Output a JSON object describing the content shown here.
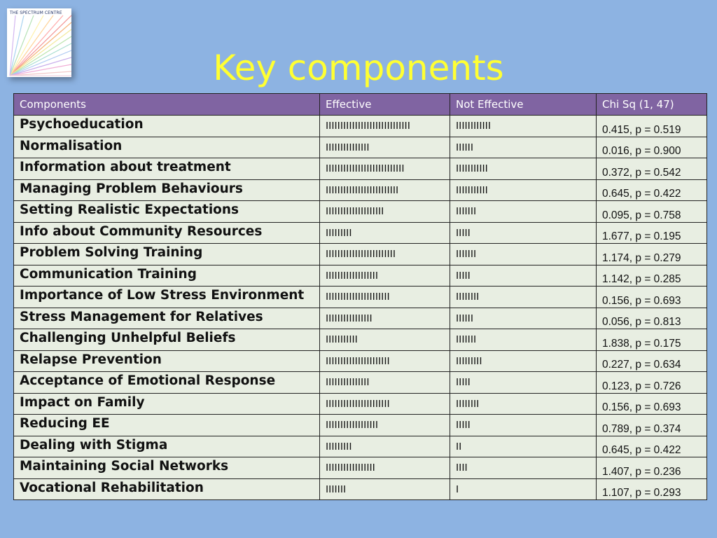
{
  "logo": {
    "text": "THE SPECTRUM CENTRE"
  },
  "slide": {
    "title": "Key components"
  },
  "table": {
    "headers": [
      "Components",
      "Effective",
      "Not Effective",
      "Chi Sq (1, 47)"
    ],
    "rows": [
      {
        "component": "Psychoeducation",
        "effective": "IIIIIIIIIIIIIIIIIIIIIIIIIIIII",
        "not_effective": "IIIIIIIIIIII",
        "chi": "0.415, p = 0.519"
      },
      {
        "component": "Normalisation",
        "effective": "IIIIIIIIIIIIIII",
        "not_effective": "IIIIII",
        "chi": "0.016, p = 0.900"
      },
      {
        "component": "Information about treatment",
        "effective": "IIIIIIIIIIIIIIIIIIIIIIIIIII",
        "not_effective": "IIIIIIIIIII",
        "chi": "0.372, p = 0.542"
      },
      {
        "component": "Managing Problem Behaviours",
        "effective": "IIIIIIIIIIIIIIIIIIIIIIIII",
        "not_effective": "IIIIIIIIIII",
        "chi": "0.645, p = 0.422"
      },
      {
        "component": "Setting Realistic Expectations",
        "effective": "IIIIIIIIIIIIIIIIIIII",
        "not_effective": "IIIIIII",
        "chi": "0.095, p = 0.758"
      },
      {
        "component": "Info about Community Resources",
        "effective": "IIIIIIIII",
        "not_effective": "IIIII",
        "chi": "1.677, p = 0.195"
      },
      {
        "component": "Problem Solving Training",
        "effective": "IIIIIIIIIIIIIIIIIIIIIIII",
        "not_effective": "IIIIIII",
        "chi": "1.174, p = 0.279"
      },
      {
        "component": "Communication Training",
        "effective": "IIIIIIIIIIIIIIIIII",
        "not_effective": "IIIII",
        "chi": "1.142, p = 0.285"
      },
      {
        "component": "Importance of Low Stress Environment",
        "effective": "IIIIIIIIIIIIIIIIIIIIII",
        "not_effective": "IIIIIIII",
        "chi": "0.156, p = 0.693"
      },
      {
        "component": "Stress Management for Relatives",
        "effective": "IIIIIIIIIIIIIIII",
        "not_effective": "IIIIII",
        "chi": "0.056, p = 0.813"
      },
      {
        "component": "Challenging Unhelpful Beliefs",
        "effective": "IIIIIIIIIII",
        "not_effective": "IIIIIII",
        "chi": "1.838, p = 0.175"
      },
      {
        "component": "Relapse Prevention",
        "effective": "IIIIIIIIIIIIIIIIIIIIII",
        "not_effective": "IIIIIIIII",
        "chi": "0.227, p = 0.634"
      },
      {
        "component": "Acceptance of Emotional Response",
        "effective": "IIIIIIIIIIIIIII",
        "not_effective": "IIIII",
        "chi": "0.123, p = 0.726"
      },
      {
        "component": "Impact on Family",
        "effective": "IIIIIIIIIIIIIIIIIIIIII",
        "not_effective": "IIIIIIII",
        "chi": "0.156, p = 0.693"
      },
      {
        "component": "Reducing EE",
        "effective": "IIIIIIIIIIIIIIIIII",
        "not_effective": "IIIII",
        "chi": "0.789, p = 0.374"
      },
      {
        "component": "Dealing with Stigma",
        "effective": "IIIIIIIII",
        "not_effective": "II",
        "chi": "0.645, p = 0.422"
      },
      {
        "component": "Maintaining Social Networks",
        "effective": "IIIIIIIIIIIIIIIII",
        "not_effective": "IIII",
        "chi": "1.407, p = 0.236"
      },
      {
        "component": "Vocational Rehabilitation",
        "effective": "IIIIIII",
        "not_effective": "I",
        "chi": "1.107, p = 0.293"
      }
    ]
  },
  "colors": {
    "background": "#8db3e2",
    "title": "#ffff33",
    "header_bg": "#8064a2",
    "cell_bg": "#e8eee2"
  }
}
